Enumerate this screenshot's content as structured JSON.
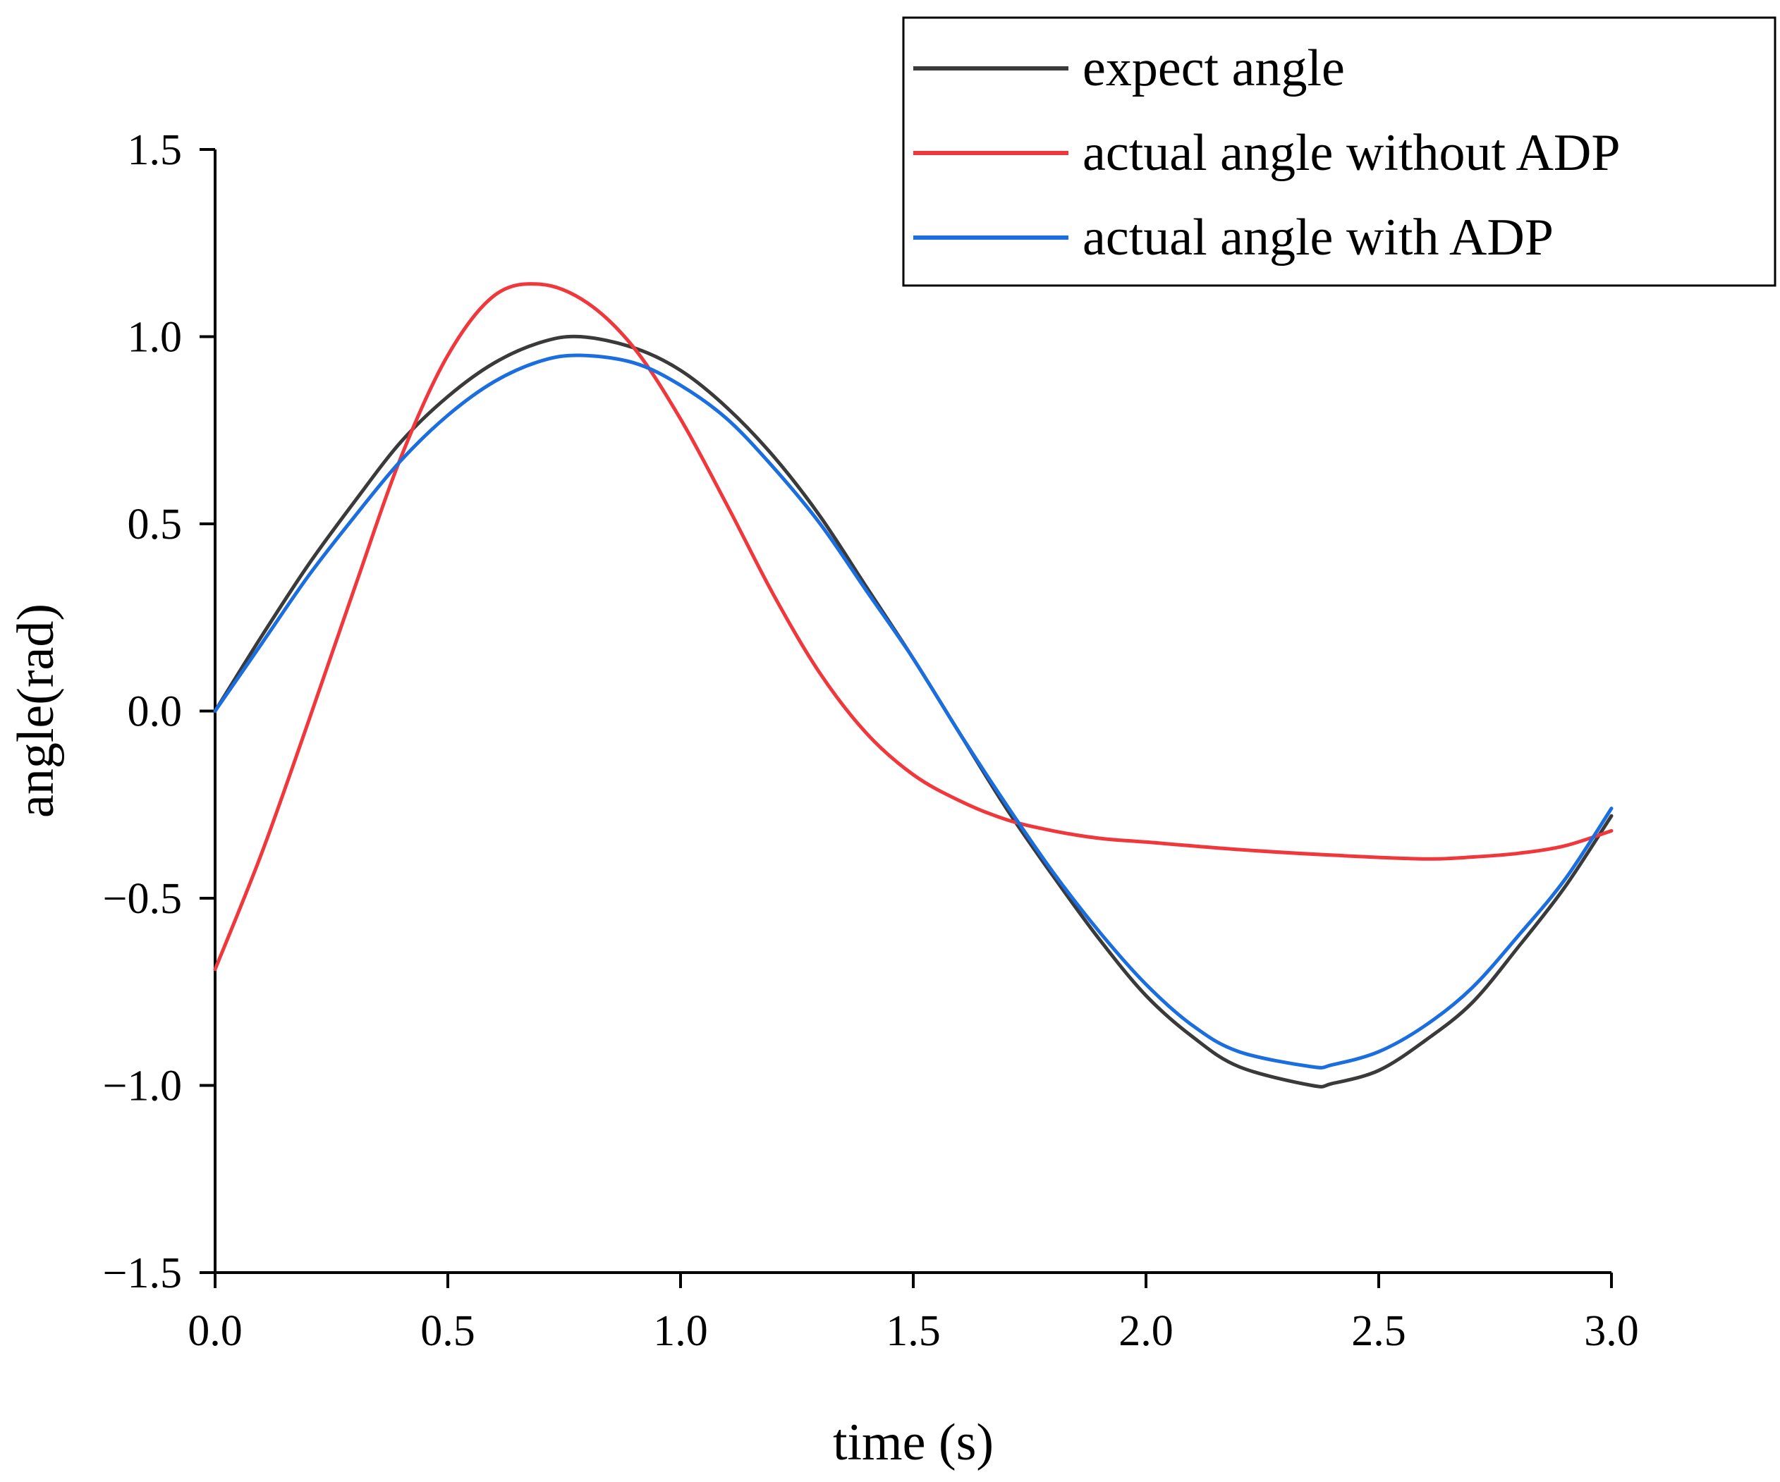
{
  "chart_data": {
    "type": "line",
    "title": "",
    "xlabel": "time (s)",
    "ylabel": "angle(rad)",
    "xlim": [
      0,
      3
    ],
    "ylim": [
      -1.5,
      1.5
    ],
    "grid": false,
    "legend_position": "top-right",
    "xticks": [
      0.0,
      0.5,
      1.0,
      1.5,
      2.0,
      2.5,
      3.0
    ],
    "xtick_labels": [
      "0.0",
      "0.5",
      "1.0",
      "1.5",
      "2.0",
      "2.5",
      "3.0"
    ],
    "yticks": [
      -1.5,
      -1.0,
      -0.5,
      0.0,
      0.5,
      1.0,
      1.5
    ],
    "ytick_labels": [
      "−1.5",
      "−1.0",
      "−0.5",
      "0.0",
      "0.5",
      "1.0",
      "1.5"
    ],
    "series": [
      {
        "name": "expect angle",
        "color": "#3a3a3a",
        "x": [
          0.0,
          0.1,
          0.2,
          0.3,
          0.4,
          0.5,
          0.6,
          0.7,
          0.785,
          0.9,
          1.0,
          1.1,
          1.2,
          1.3,
          1.4,
          1.5,
          1.6,
          1.7,
          1.8,
          1.9,
          2.0,
          2.1,
          2.2,
          2.356,
          2.4,
          2.5,
          2.6,
          2.7,
          2.8,
          2.9,
          3.0
        ],
        "y": [
          0.0,
          0.2,
          0.39,
          0.56,
          0.72,
          0.84,
          0.93,
          0.985,
          1.0,
          0.97,
          0.91,
          0.81,
          0.68,
          0.52,
          0.33,
          0.14,
          -0.06,
          -0.26,
          -0.44,
          -0.61,
          -0.76,
          -0.87,
          -0.95,
          -1.0,
          -0.995,
          -0.96,
          -0.88,
          -0.78,
          -0.63,
          -0.47,
          -0.28
        ]
      },
      {
        "name": "actual angle without ADP",
        "color": "#f0383c",
        "x": [
          0.0,
          0.1,
          0.2,
          0.3,
          0.4,
          0.5,
          0.6,
          0.7,
          0.8,
          0.9,
          1.0,
          1.1,
          1.2,
          1.3,
          1.4,
          1.5,
          1.6,
          1.7,
          1.8,
          1.9,
          2.0,
          2.2,
          2.4,
          2.6,
          2.7,
          2.8,
          2.9,
          3.0
        ],
        "y": [
          -0.69,
          -0.38,
          -0.03,
          0.33,
          0.68,
          0.95,
          1.11,
          1.14,
          1.09,
          0.97,
          0.78,
          0.55,
          0.31,
          0.1,
          -0.06,
          -0.17,
          -0.24,
          -0.29,
          -0.32,
          -0.34,
          -0.35,
          -0.37,
          -0.385,
          -0.395,
          -0.39,
          -0.38,
          -0.36,
          -0.32
        ]
      },
      {
        "name": "actual angle with ADP",
        "color": "#1a6ee0",
        "x": [
          0.0,
          0.1,
          0.2,
          0.3,
          0.4,
          0.5,
          0.6,
          0.7,
          0.785,
          0.9,
          1.0,
          1.1,
          1.2,
          1.3,
          1.4,
          1.5,
          1.6,
          1.7,
          1.8,
          1.9,
          2.0,
          2.1,
          2.2,
          2.356,
          2.4,
          2.5,
          2.6,
          2.7,
          2.8,
          2.9,
          3.0
        ],
        "y": [
          0.0,
          0.18,
          0.36,
          0.52,
          0.67,
          0.79,
          0.88,
          0.935,
          0.95,
          0.93,
          0.87,
          0.78,
          0.65,
          0.5,
          0.32,
          0.14,
          -0.06,
          -0.25,
          -0.43,
          -0.59,
          -0.73,
          -0.84,
          -0.91,
          -0.95,
          -0.945,
          -0.91,
          -0.84,
          -0.74,
          -0.6,
          -0.45,
          -0.26
        ]
      }
    ]
  }
}
